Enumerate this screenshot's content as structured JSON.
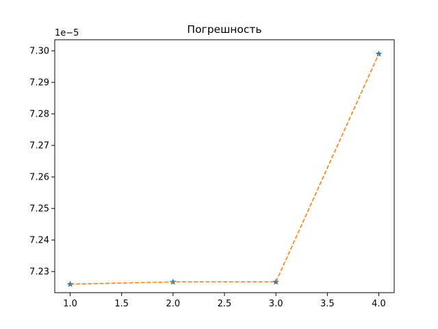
{
  "chart_data": {
    "type": "line",
    "title": "Погрешность",
    "xlabel": "",
    "ylabel": "",
    "y_offset_label": "1e−5",
    "xlim": [
      0.85,
      4.15
    ],
    "ylim": [
      7.2233,
      7.3035
    ],
    "x_ticks": [
      1.0,
      1.5,
      2.0,
      2.5,
      3.0,
      3.5,
      4.0
    ],
    "x_tick_labels": [
      "1.0",
      "1.5",
      "2.0",
      "2.5",
      "3.0",
      "3.5",
      "4.0"
    ],
    "y_ticks": [
      7.23,
      7.24,
      7.25,
      7.26,
      7.27,
      7.28,
      7.29,
      7.3
    ],
    "y_tick_labels": [
      "7.23",
      "7.24",
      "7.25",
      "7.26",
      "7.27",
      "7.28",
      "7.29",
      "7.30"
    ],
    "grid": false,
    "series": [
      {
        "x": [
          1,
          2,
          3,
          4
        ],
        "values": [
          7.226,
          7.2267,
          7.2267,
          7.299
        ],
        "marker": "star",
        "marker_color": "#1f77b4",
        "line_style": "dashed",
        "line_color": "#ff7f0e"
      }
    ]
  }
}
